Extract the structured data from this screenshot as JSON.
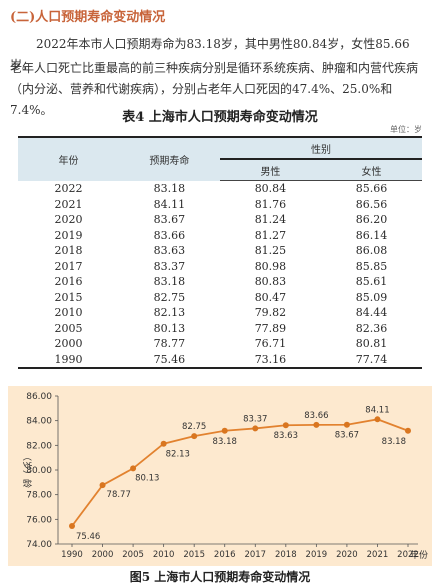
{
  "section_title": "(二)人口预期寿命变动情况",
  "para1": "2022年本市人口预期寿命为83.18岁，其中男性80.84岁，女性85.66岁。",
  "para2": "老年人口死亡比重最高的前三种疾病分别是循环系统疾病、肿瘤和内营代疾病（内分泌、营养和代谢疾病），分别占老年人口死因的47.4%、25.0%和7.4%。",
  "table": {
    "title": "表4  上海市人口预期寿命变动情况",
    "unit": "单位：岁",
    "headers": {
      "year": "年份",
      "life": "预期寿命",
      "gender": "性别",
      "male": "男性",
      "female": "女性"
    },
    "rows": [
      {
        "year": "2022",
        "life": "83.18",
        "male": "80.84",
        "female": "85.66"
      },
      {
        "year": "2021",
        "life": "84.11",
        "male": "81.76",
        "female": "86.56"
      },
      {
        "year": "2020",
        "life": "83.67",
        "male": "81.24",
        "female": "86.20"
      },
      {
        "year": "2019",
        "life": "83.66",
        "male": "81.27",
        "female": "86.14"
      },
      {
        "year": "2018",
        "life": "83.63",
        "male": "81.25",
        "female": "86.08"
      },
      {
        "year": "2017",
        "life": "83.37",
        "male": "80.98",
        "female": "85.85"
      },
      {
        "year": "2016",
        "life": "83.18",
        "male": "80.83",
        "female": "85.61"
      },
      {
        "year": "2015",
        "life": "82.75",
        "male": "80.47",
        "female": "85.09"
      },
      {
        "year": "2010",
        "life": "82.13",
        "male": "79.82",
        "female": "84.44"
      },
      {
        "year": "2005",
        "life": "80.13",
        "male": "77.89",
        "female": "82.36"
      },
      {
        "year": "2000",
        "life": "78.77",
        "male": "76.71",
        "female": "80.81"
      },
      {
        "year": "1990",
        "life": "75.46",
        "male": "73.16",
        "female": "77.74"
      }
    ]
  },
  "chart_data": {
    "type": "line",
    "title": "图5  上海市人口预期寿命变动情况",
    "xlabel": "年份",
    "ylabel": "（岁）龄",
    "categories": [
      "1990",
      "2000",
      "2005",
      "2010",
      "2015",
      "2016",
      "2017",
      "2018",
      "2019",
      "2020",
      "2021",
      "2022"
    ],
    "values": [
      75.46,
      78.77,
      80.13,
      82.13,
      82.75,
      83.18,
      83.37,
      83.63,
      83.66,
      83.67,
      84.11,
      83.18
    ],
    "ylim": [
      74.0,
      86.0
    ],
    "yticks": [
      "74.00",
      "76.00",
      "78.00",
      "80.00",
      "82.00",
      "84.00",
      "86.00"
    ],
    "data_labels": [
      "75.46",
      "78.77",
      "80.13",
      "82.13",
      "82.75",
      "83.18",
      "83.37",
      "83.63",
      "83.66",
      "83.67",
      "84.11",
      "83.18"
    ],
    "grid": false,
    "colors": {
      "background": "#fde9cf",
      "line": "#e2822f",
      "marker": "#d97620"
    }
  }
}
